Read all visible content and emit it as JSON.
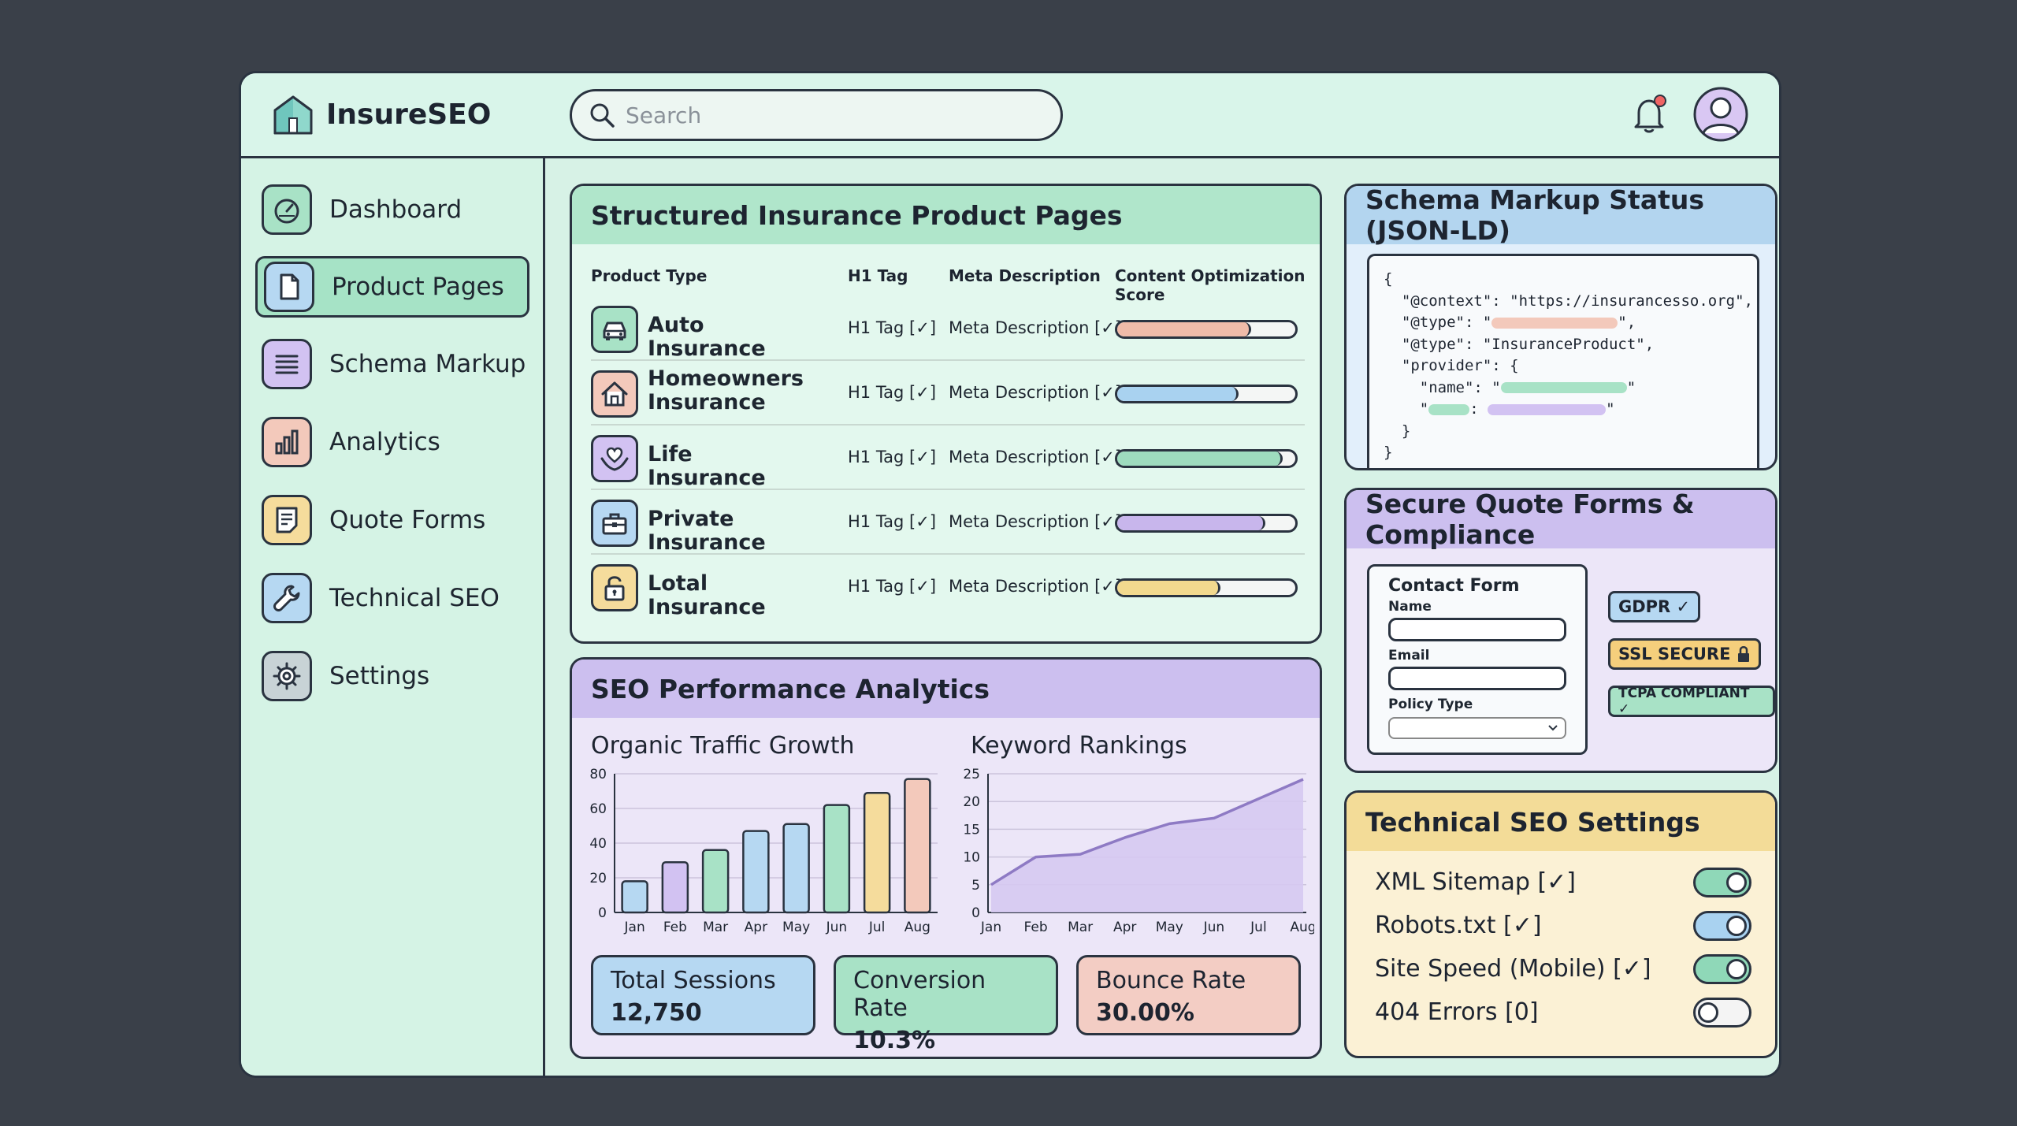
{
  "app": {
    "name": "InsureSEO"
  },
  "search": {
    "placeholder": "Search"
  },
  "sidebar": {
    "items": [
      {
        "label": "Dashboard",
        "icon": "gauge-icon",
        "color": "#a8e2c6",
        "active": false
      },
      {
        "label": "Product Pages",
        "icon": "document-icon",
        "color": "#b6d8f2",
        "active": true
      },
      {
        "label": "Schema Markup",
        "icon": "lines-icon",
        "color": "#d2c2f2",
        "active": false
      },
      {
        "label": "Analytics",
        "icon": "bar-chart-icon",
        "color": "#f3c9bb",
        "active": false
      },
      {
        "label": "Quote Forms",
        "icon": "form-icon",
        "color": "#f5dc9c",
        "active": false
      },
      {
        "label": "Technical SEO",
        "icon": "wrench-icon",
        "color": "#b6d8f2",
        "active": false
      },
      {
        "label": "Settings",
        "icon": "gear-icon",
        "color": "#c8d3d6",
        "active": false
      }
    ]
  },
  "products": {
    "title": "Structured Insurance Product Pages",
    "columns": [
      "Product Type",
      "H1 Tag",
      "Meta Description",
      "Content Optimization Score"
    ],
    "rows": [
      {
        "name": "Auto Insurance",
        "h1": "H1 Tag [✓]",
        "meta": "Meta Description [✓]",
        "score": 0.75,
        "color": "#f0bba9",
        "icon_color": "#a8e2c6",
        "icon": "car-icon"
      },
      {
        "name": "Homeowners Insurance",
        "h1": "H1 Tag [✓]",
        "meta": "Meta Description [✓]",
        "score": 0.68,
        "color": "#a9d2f0",
        "icon_color": "#f3c9bb",
        "icon": "house-icon"
      },
      {
        "name": "Life Insurance",
        "h1": "H1 Tag [✓]",
        "meta": "Meta Description [✓]",
        "score": 0.93,
        "color": "#9edcbe",
        "icon_color": "#d2c2f2",
        "icon": "heart-hands-icon"
      },
      {
        "name": "Private Insurance",
        "h1": "H1 Tag [✓]",
        "meta": "Meta Description [✓]",
        "score": 0.83,
        "color": "#c8b6ec",
        "icon_color": "#b6d8f2",
        "icon": "briefcase-icon"
      },
      {
        "name": "Lotal Insurance",
        "h1": "H1 Tag [✓]",
        "meta": "Meta Description [✓]",
        "score": 0.58,
        "color": "#f2d98e",
        "icon_color": "#f5dc9c",
        "icon": "padlock-icon"
      }
    ]
  },
  "seo": {
    "title": "SEO Performance Analytics",
    "stats": [
      {
        "label": "Total Sessions",
        "value": "12,750",
        "color": "#b6d8f2"
      },
      {
        "label": "Conversion Rate",
        "value": "10.3%",
        "color": "#a8e2c6"
      },
      {
        "label": "Bounce Rate",
        "value": "30.00%",
        "color": "#f3cdc4"
      }
    ]
  },
  "chart_data": [
    {
      "type": "bar",
      "title": "Organic Traffic Growth",
      "categories": [
        "Jan",
        "Feb",
        "Mar",
        "Apr",
        "May",
        "Jun",
        "Jul",
        "Aug"
      ],
      "values": [
        18,
        29,
        36,
        47,
        51,
        62,
        69,
        77
      ],
      "colors": [
        "#b6d8f2",
        "#d2c2f2",
        "#a8e2c6",
        "#b6d8f2",
        "#b6d8f2",
        "#a8e2c6",
        "#f5dc9c",
        "#f3c9bb"
      ],
      "ylim": [
        0,
        80
      ],
      "yticks": [
        0,
        20,
        40,
        60,
        80
      ],
      "grid": true
    },
    {
      "type": "area",
      "title": "Keyword Rankings",
      "categories": [
        "Jan",
        "Feb",
        "Mar",
        "Apr",
        "May",
        "Jun",
        "Jul",
        "Aug"
      ],
      "values": [
        5,
        10,
        10.5,
        13.5,
        16,
        17,
        20.5,
        24
      ],
      "ylim": [
        0,
        25
      ],
      "yticks": [
        0,
        5,
        10,
        15,
        20,
        25
      ],
      "grid": true,
      "color": "#8e7ac4"
    }
  ],
  "schema": {
    "title": "Schema Markup Status (JSON-LD)",
    "lines": {
      "open": "{",
      "context": "  \"@context\": \"https://insurancesso.org\",",
      "type1_prefix": "  \"@type\": \"",
      "type1_suffix": "\",",
      "type2": "  \"@type\": \"InsuranceProduct\",",
      "provider": "  \"provider\": {",
      "name_prefix": "    \"name\": \"",
      "name_suffix": "\"",
      "blank_prefix": "    \"",
      "blank_mid": ": ",
      "blank_suffix": "\"",
      "inner_close": "  }",
      "close": "}"
    }
  },
  "compliance": {
    "title": "Secure Quote Forms & Compliance",
    "form": {
      "title": "Contact Form",
      "name_label": "Name",
      "email_label": "Email",
      "policy_label": "Policy Type"
    },
    "badges": [
      {
        "label": "GDPR ✓",
        "color": "#b6d8f2"
      },
      {
        "label": "SSL SECURE",
        "color": "#f5cf7c"
      },
      {
        "label": "TCPA COMPLIANT ✓",
        "color": "#a8e2c6"
      }
    ]
  },
  "tech": {
    "title": "Technical SEO Settings",
    "rows": [
      {
        "label": "XML Sitemap [✓]",
        "on": true,
        "color": "#8fd8b8"
      },
      {
        "label": "Robots.txt [✓]",
        "on": true,
        "color": "#a9d2f0"
      },
      {
        "label": "Site Speed (Mobile) [✓]",
        "on": true,
        "color": "#8fd8b8"
      },
      {
        "label": "404 Errors [0]",
        "on": false,
        "color": "#f4f4f4"
      }
    ]
  }
}
